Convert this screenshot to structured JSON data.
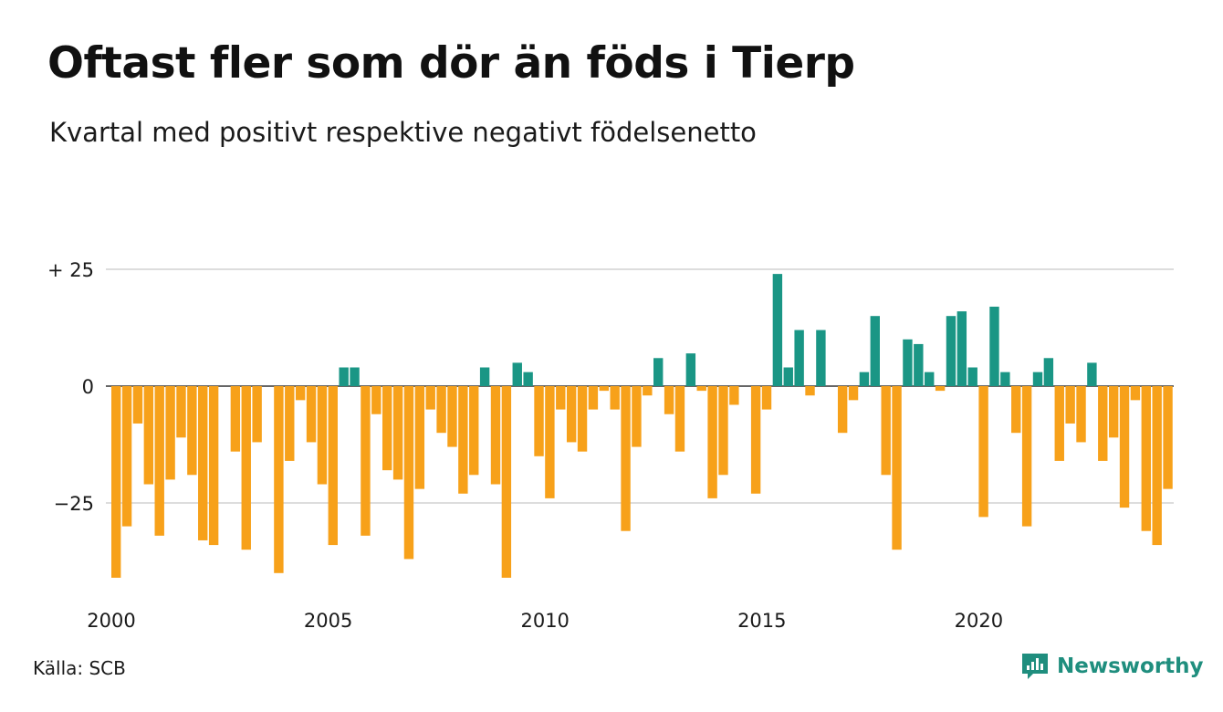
{
  "title": "Oftast fler som dör än föds i Tierp",
  "subtitle": "Kvartal med positivt respektive negativt födelsenetto",
  "source": "Källa: SCB",
  "logo": {
    "name": "Newsworthy",
    "icon": "newsworthy-logo-icon"
  },
  "colors": {
    "positive": "#1a9685",
    "negative": "#f7a11a",
    "grid": "#dddddd"
  },
  "chart_data": {
    "type": "bar",
    "title": "Oftast fler som dör än föds i Tierp",
    "subtitle": "Kvartal med positivt respektive negativt födelsenetto",
    "x_start": 2000,
    "x_step": 0.25,
    "x_ticks": [
      {
        "value": 2000,
        "label": "2000"
      },
      {
        "value": 2005,
        "label": "2005"
      },
      {
        "value": 2010,
        "label": "2010"
      },
      {
        "value": 2015,
        "label": "2015"
      },
      {
        "value": 2020,
        "label": "2020"
      }
    ],
    "y_ticks": [
      {
        "value": 25,
        "label": "+ 25"
      },
      {
        "value": 0,
        "label": "0"
      },
      {
        "value": -25,
        "label": "−25"
      }
    ],
    "ylim": [
      -42,
      25
    ],
    "grid": true,
    "values": [
      -41,
      -30,
      -8,
      -21,
      -32,
      -20,
      -11,
      -19,
      -33,
      -34,
      0,
      -14,
      -35,
      -12,
      0,
      -40,
      -16,
      -3,
      -12,
      -21,
      -34,
      4,
      4,
      -32,
      -6,
      -18,
      -20,
      -37,
      -22,
      -5,
      -10,
      -13,
      -23,
      -19,
      4,
      -21,
      -41,
      5,
      3,
      -15,
      -24,
      -5,
      -12,
      -14,
      -5,
      -1,
      -5,
      -31,
      -13,
      -2,
      6,
      -6,
      -14,
      7,
      -1,
      -24,
      -19,
      -4,
      0,
      -23,
      -5,
      24,
      4,
      12,
      -2,
      12,
      0,
      -10,
      -3,
      3,
      15,
      -19,
      -35,
      10,
      9,
      3,
      -1,
      15,
      16,
      4,
      -28,
      17,
      3,
      -10,
      -30,
      3,
      6,
      -16,
      -8,
      -12,
      5,
      -16,
      -11,
      -26,
      -3,
      -31,
      -34,
      -22
    ]
  }
}
